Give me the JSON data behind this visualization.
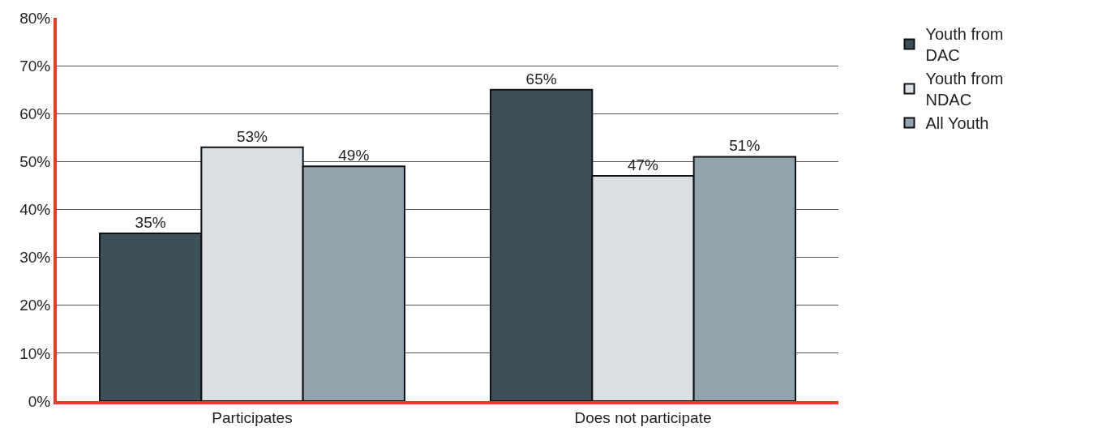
{
  "chart_data": {
    "type": "bar",
    "categories": [
      "Participates",
      "Does not participate"
    ],
    "series": [
      {
        "name": "Youth from DAC",
        "color": "#3d4f59",
        "values": [
          35,
          65
        ],
        "value_labels": [
          "35%",
          "65%"
        ]
      },
      {
        "name": "Youth from NDAC",
        "color": "#d9dfe3",
        "values": [
          53,
          47
        ],
        "value_labels": [
          "53%",
          "47%"
        ]
      },
      {
        "name": "All Youth",
        "color": "#91a3ad",
        "values": [
          49,
          51
        ],
        "value_labels": [
          "49%",
          "51%"
        ]
      }
    ],
    "ylim": [
      0,
      80
    ],
    "yticks": [
      {
        "value": 0,
        "label": "0%"
      },
      {
        "value": 10,
        "label": "10%"
      },
      {
        "value": 20,
        "label": "20%"
      },
      {
        "value": 30,
        "label": "30%"
      },
      {
        "value": 40,
        "label": "40%"
      },
      {
        "value": 50,
        "label": "50%"
      },
      {
        "value": 60,
        "label": "60%"
      },
      {
        "value": 70,
        "label": "70%"
      },
      {
        "value": 80,
        "label": "80%"
      }
    ],
    "grid": "y",
    "legend": "top right"
  }
}
